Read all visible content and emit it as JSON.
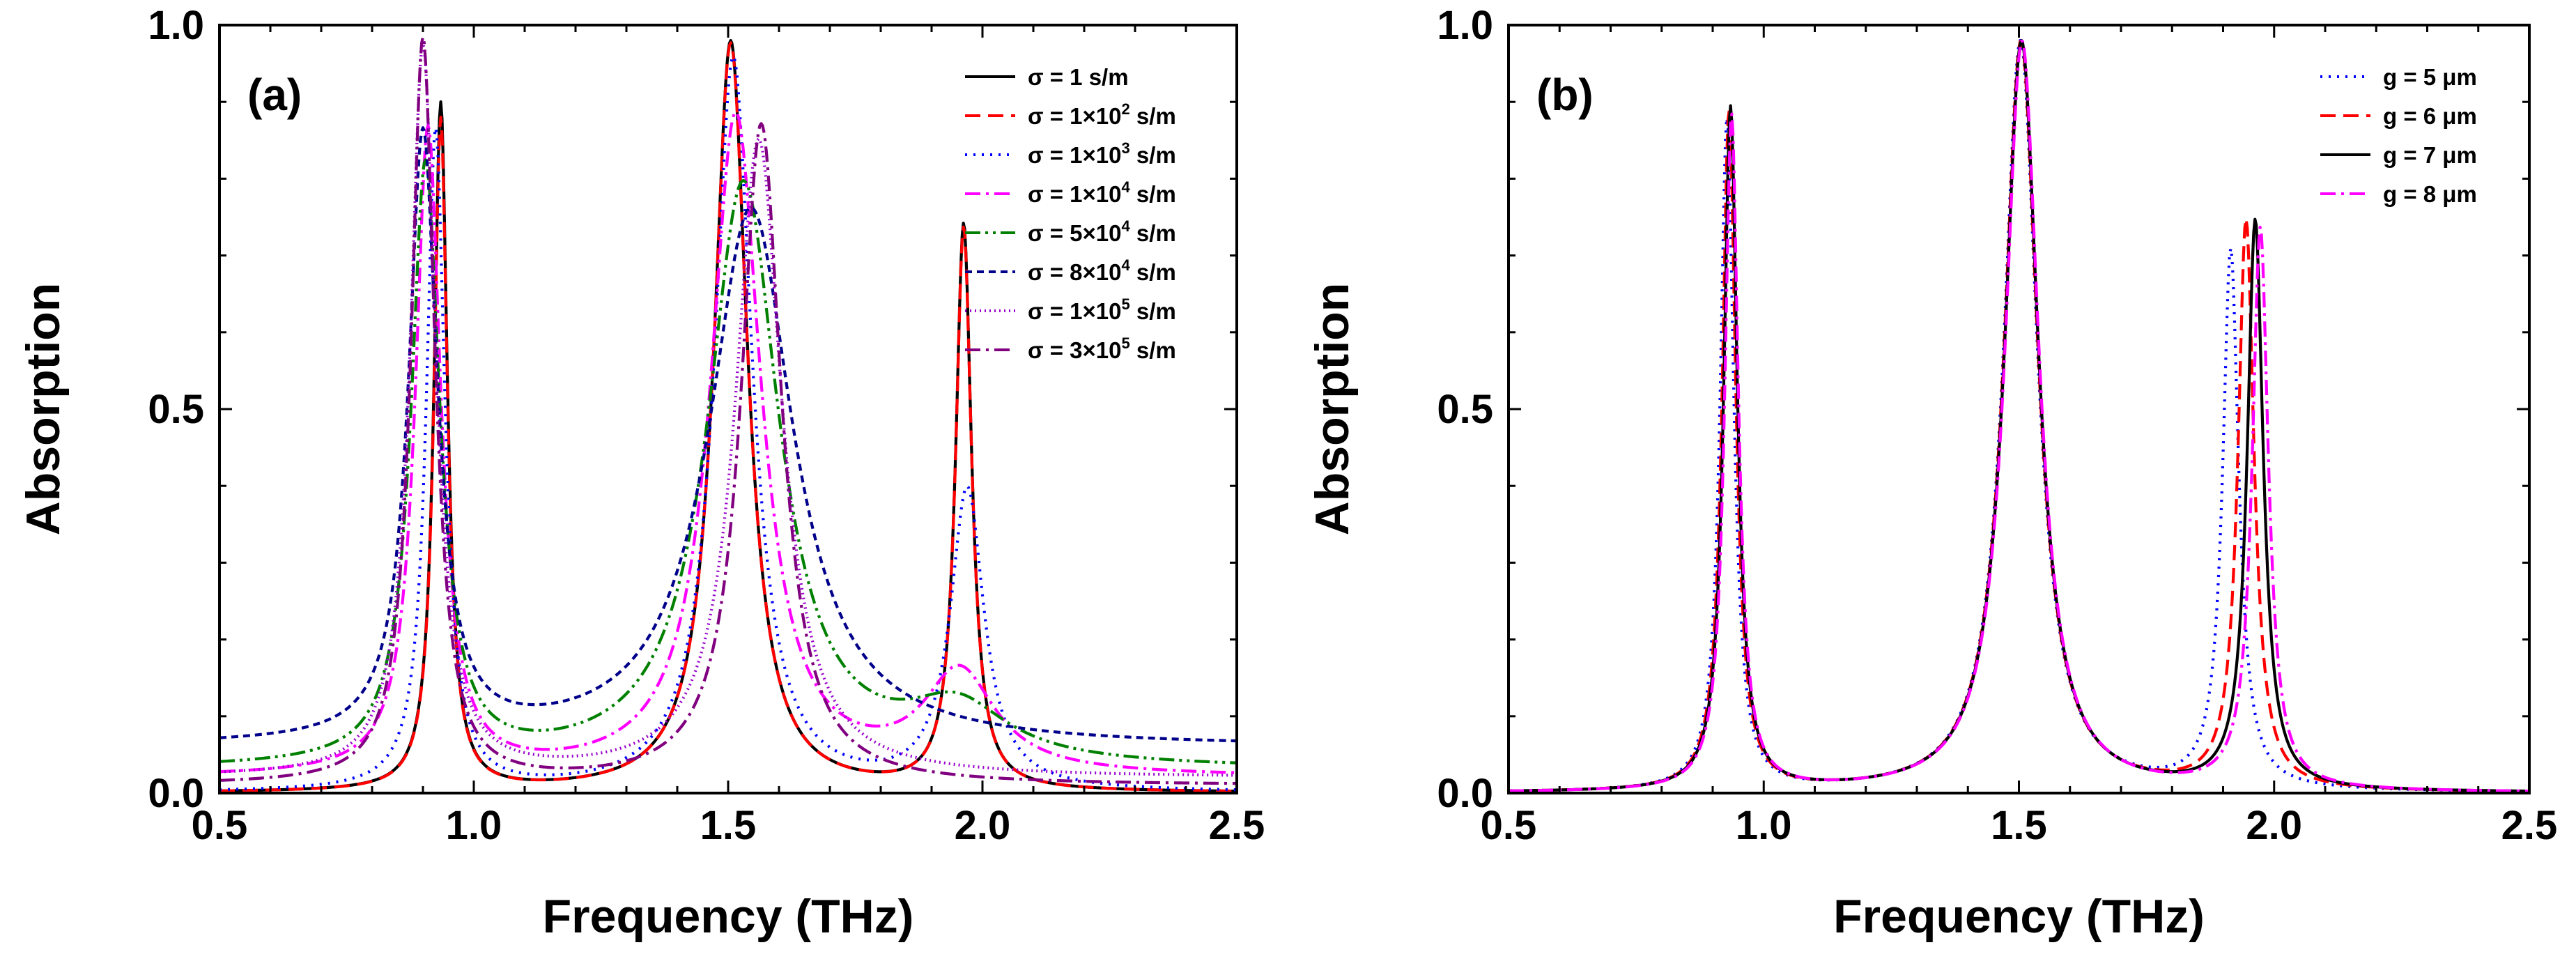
{
  "chart_data": [
    {
      "type": "line",
      "panel_label": "(a)",
      "xlabel": "Frequency (THz)",
      "ylabel": "Absorption",
      "xlim": [
        0.5,
        2.5
      ],
      "ylim": [
        0.0,
        1.0
      ],
      "x_ticks": [
        "0.5",
        "1.0",
        "1.5",
        "2.0",
        "2.5"
      ],
      "y_ticks": [
        "0.0",
        "0.5",
        "1.0"
      ],
      "grid": false,
      "legend_position": "top-right",
      "series": [
        {
          "name": "σ = 1 s/m",
          "base": "σ = 1 s/m",
          "sup": "",
          "unit": "",
          "color": "#000000",
          "dash": "solid",
          "peaks": [
            {
              "f": 0.935,
              "a": 0.895,
              "w": 0.016
            },
            {
              "f": 1.505,
              "a": 0.978,
              "w": 0.04
            },
            {
              "f": 1.963,
              "a": 0.735,
              "w": 0.019
            }
          ],
          "bg": 0.0,
          "points": [
            [
              0.5,
              0.005
            ],
            [
              0.8,
              0.06
            ],
            [
              0.935,
              0.895
            ],
            [
              1.16,
              0.07
            ],
            [
              1.505,
              0.985
            ],
            [
              1.83,
              0.11
            ],
            [
              1.963,
              0.76
            ],
            [
              2.2,
              0.05
            ],
            [
              2.5,
              0.025
            ]
          ]
        },
        {
          "name": "σ = 1×10² s/m",
          "base": "σ = 1×10",
          "sup": "2",
          "unit": " s/m",
          "color": "#ff0000",
          "dash": "dashed",
          "peaks": [
            {
              "f": 0.935,
              "a": 0.875,
              "w": 0.016
            },
            {
              "f": 1.505,
              "a": 0.975,
              "w": 0.04
            },
            {
              "f": 1.963,
              "a": 0.73,
              "w": 0.019
            }
          ],
          "bg": 0.0,
          "points": [
            [
              0.5,
              0.005
            ],
            [
              0.8,
              0.06
            ],
            [
              0.935,
              0.88
            ],
            [
              1.16,
              0.07
            ],
            [
              1.505,
              0.98
            ],
            [
              1.83,
              0.11
            ],
            [
              1.963,
              0.755
            ],
            [
              2.2,
              0.05
            ],
            [
              2.5,
              0.025
            ]
          ]
        },
        {
          "name": "σ = 1×10³ s/m",
          "base": "σ = 1×10",
          "sup": "3",
          "unit": " s/m",
          "color": "#0000ff",
          "dash": "dotted",
          "peaks": [
            {
              "f": 0.925,
              "a": 0.86,
              "w": 0.022
            },
            {
              "f": 1.51,
              "a": 0.955,
              "w": 0.045
            },
            {
              "f": 1.97,
              "a": 0.39,
              "w": 0.04
            }
          ],
          "bg": 0.0,
          "points": [
            [
              0.5,
              0.008
            ],
            [
              0.925,
              0.87
            ],
            [
              1.1,
              0.1
            ],
            [
              1.51,
              0.96
            ],
            [
              1.97,
              0.42
            ],
            [
              2.5,
              0.03
            ]
          ]
        },
        {
          "name": "σ = 1×10⁴ s/m",
          "base": "σ = 1×10",
          "sup": "4",
          "unit": " s/m",
          "color": "#ff00ff",
          "dash": "dashdot",
          "peaks": [
            {
              "f": 0.91,
              "a": 0.84,
              "w": 0.03
            },
            {
              "f": 1.515,
              "a": 0.86,
              "w": 0.06
            },
            {
              "f": 1.955,
              "a": 0.13,
              "w": 0.085
            }
          ],
          "bg": 0.02,
          "points": [
            [
              0.5,
              0.01
            ],
            [
              0.91,
              0.86
            ],
            [
              1.16,
              0.12
            ],
            [
              1.515,
              0.9
            ],
            [
              1.955,
              0.19
            ],
            [
              2.5,
              0.03
            ]
          ]
        },
        {
          "name": "σ = 5×10⁴ s/m",
          "base": "σ = 5×10",
          "sup": "4",
          "unit": " s/m",
          "color": "#008000",
          "dash": "dashdotdot",
          "peaks": [
            {
              "f": 0.905,
              "a": 0.78,
              "w": 0.034
            },
            {
              "f": 1.53,
              "a": 0.76,
              "w": 0.085
            },
            {
              "f": 1.95,
              "a": 0.07,
              "w": 0.12
            }
          ],
          "bg": 0.03,
          "points": [
            [
              0.5,
              0.012
            ],
            [
              0.905,
              0.83
            ],
            [
              1.12,
              0.15
            ],
            [
              1.53,
              0.83
            ],
            [
              1.95,
              0.13
            ],
            [
              2.5,
              0.03
            ]
          ]
        },
        {
          "name": "σ = 8×10⁴ s/m",
          "base": "σ = 8×10",
          "sup": "4",
          "unit": " s/m",
          "color": "#00008b",
          "dash": "shortdash",
          "peaks": [
            {
              "f": 0.9,
              "a": 0.79,
              "w": 0.034
            },
            {
              "f": 1.545,
              "a": 0.7,
              "w": 0.1
            }
          ],
          "bg": 0.06,
          "points": [
            [
              0.5,
              0.015
            ],
            [
              0.9,
              0.85
            ],
            [
              1.1,
              0.2
            ],
            [
              1.545,
              0.8
            ],
            [
              1.95,
              0.1
            ],
            [
              2.5,
              0.04
            ]
          ]
        },
        {
          "name": "σ = 1×10⁵ s/m",
          "base": "σ = 1×10",
          "sup": "5",
          "unit": " s/m",
          "color": "#9900cc",
          "dash": "fine",
          "peaks": [
            {
              "f": 0.9,
              "a": 0.95,
              "w": 0.03
            },
            {
              "f": 1.56,
              "a": 0.83,
              "w": 0.055
            }
          ],
          "bg": 0.02,
          "points": [
            [
              0.5,
              0.01
            ],
            [
              0.9,
              0.97
            ],
            [
              1.16,
              0.18
            ],
            [
              1.56,
              0.86
            ],
            [
              2.5,
              0.03
            ]
          ]
        },
        {
          "name": "σ = 3×10⁵ s/m",
          "base": "σ = 3×10",
          "sup": "5",
          "unit": " s/m",
          "color": "#800080",
          "dash": "dashdot",
          "peaks": [
            {
              "f": 0.9,
              "a": 0.97,
              "w": 0.028
            },
            {
              "f": 1.565,
              "a": 0.86,
              "w": 0.048
            }
          ],
          "bg": 0.01,
          "points": [
            [
              0.5,
              0.01
            ],
            [
              0.9,
              0.99
            ],
            [
              1.15,
              0.07
            ],
            [
              1.565,
              0.89
            ],
            [
              2.5,
              0.03
            ]
          ]
        }
      ]
    },
    {
      "type": "line",
      "panel_label": "(b)",
      "xlabel": "Frequency (THz)",
      "ylabel": "Absorption",
      "xlim": [
        0.5,
        2.5
      ],
      "ylim": [
        0.0,
        1.0
      ],
      "x_ticks": [
        "0.5",
        "1.0",
        "1.5",
        "2.0",
        "2.5"
      ],
      "y_ticks": [
        "0.0",
        "0.5",
        "1.0"
      ],
      "grid": false,
      "legend_position": "top-right",
      "series": [
        {
          "name": "g = 5 μm",
          "base": "g = 5 μm",
          "sup": "",
          "unit": "",
          "color": "#0000ff",
          "dash": "dotted",
          "peaks": [
            {
              "f": 0.928,
              "a": 0.875,
              "w": 0.016
            },
            {
              "f": 1.503,
              "a": 0.978,
              "w": 0.04
            },
            {
              "f": 1.915,
              "a": 0.7,
              "w": 0.019
            }
          ],
          "bg": 0.0,
          "points": [
            [
              0.5,
              0.005
            ],
            [
              0.928,
              0.89
            ],
            [
              1.16,
              0.07
            ],
            [
              1.503,
              0.985
            ],
            [
              1.915,
              0.72
            ],
            [
              2.5,
              0.025
            ]
          ]
        },
        {
          "name": "g = 6 μm",
          "base": "g = 6 μm",
          "sup": "",
          "unit": "",
          "color": "#ff0000",
          "dash": "dashed",
          "peaks": [
            {
              "f": 0.932,
              "a": 0.885,
              "w": 0.016
            },
            {
              "f": 1.504,
              "a": 0.978,
              "w": 0.04
            },
            {
              "f": 1.945,
              "a": 0.74,
              "w": 0.019
            }
          ],
          "bg": 0.0,
          "points": [
            [
              0.5,
              0.005
            ],
            [
              0.932,
              0.895
            ],
            [
              1.16,
              0.07
            ],
            [
              1.504,
              0.985
            ],
            [
              1.945,
              0.76
            ],
            [
              2.5,
              0.025
            ]
          ]
        },
        {
          "name": "g = 7 μm",
          "base": "g = 7 μm",
          "sup": "",
          "unit": "",
          "color": "#000000",
          "dash": "solid",
          "peaks": [
            {
              "f": 0.935,
              "a": 0.89,
              "w": 0.016
            },
            {
              "f": 1.505,
              "a": 0.978,
              "w": 0.04
            },
            {
              "f": 1.963,
              "a": 0.74,
              "w": 0.019
            }
          ],
          "bg": 0.0,
          "points": [
            [
              0.5,
              0.005
            ],
            [
              0.935,
              0.9
            ],
            [
              1.16,
              0.07
            ],
            [
              1.505,
              0.985
            ],
            [
              1.963,
              0.76
            ],
            [
              2.5,
              0.025
            ]
          ]
        },
        {
          "name": "g = 8 μm",
          "base": "g = 8 μm",
          "sup": "",
          "unit": "",
          "color": "#ff00ff",
          "dash": "dashdot",
          "peaks": [
            {
              "f": 0.937,
              "a": 0.88,
              "w": 0.016
            },
            {
              "f": 1.506,
              "a": 0.978,
              "w": 0.04
            },
            {
              "f": 1.973,
              "a": 0.73,
              "w": 0.019
            }
          ],
          "bg": 0.0,
          "points": [
            [
              0.5,
              0.005
            ],
            [
              0.937,
              0.89
            ],
            [
              1.16,
              0.07
            ],
            [
              1.506,
              0.985
            ],
            [
              1.973,
              0.755
            ],
            [
              2.5,
              0.025
            ]
          ]
        }
      ]
    }
  ]
}
